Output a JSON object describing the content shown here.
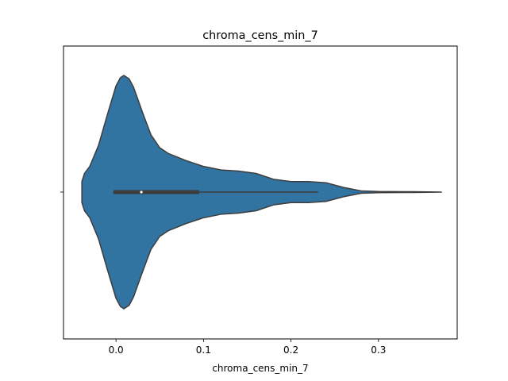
{
  "chart_data": {
    "type": "violin",
    "title": "chroma_cens_min_7",
    "xlabel": "chroma_cens_min_7",
    "ylabel": "",
    "xlim": [
      -0.06,
      0.39
    ],
    "x_ticks": [
      {
        "value": 0.0,
        "label": "0.0"
      },
      {
        "value": 0.1,
        "label": "0.1"
      },
      {
        "value": 0.2,
        "label": "0.2"
      },
      {
        "value": 0.3,
        "label": "0.3"
      }
    ],
    "grid": false,
    "orientation": "horizontal",
    "color": "#3274a1",
    "edge_color": "#3d3d3d",
    "density_profile": [
      {
        "x": -0.039,
        "d": 0.09
      },
      {
        "x": -0.036,
        "d": 0.16
      },
      {
        "x": -0.03,
        "d": 0.22
      },
      {
        "x": -0.02,
        "d": 0.4
      },
      {
        "x": -0.01,
        "d": 0.66
      },
      {
        "x": 0.0,
        "d": 0.91
      },
      {
        "x": 0.005,
        "d": 0.98
      },
      {
        "x": 0.009,
        "d": 1.0
      },
      {
        "x": 0.015,
        "d": 0.97
      },
      {
        "x": 0.02,
        "d": 0.9
      },
      {
        "x": 0.03,
        "d": 0.69
      },
      {
        "x": 0.04,
        "d": 0.49
      },
      {
        "x": 0.05,
        "d": 0.38
      },
      {
        "x": 0.06,
        "d": 0.33
      },
      {
        "x": 0.08,
        "d": 0.27
      },
      {
        "x": 0.1,
        "d": 0.22
      },
      {
        "x": 0.12,
        "d": 0.19
      },
      {
        "x": 0.14,
        "d": 0.18
      },
      {
        "x": 0.16,
        "d": 0.16
      },
      {
        "x": 0.18,
        "d": 0.11
      },
      {
        "x": 0.2,
        "d": 0.09
      },
      {
        "x": 0.22,
        "d": 0.09
      },
      {
        "x": 0.24,
        "d": 0.08
      },
      {
        "x": 0.26,
        "d": 0.04
      },
      {
        "x": 0.28,
        "d": 0.01
      },
      {
        "x": 0.3,
        "d": 0.005
      },
      {
        "x": 0.34,
        "d": 0.003
      },
      {
        "x": 0.372,
        "d": 0.0
      }
    ],
    "box": {
      "whisker_low": -0.003,
      "q1": -0.003,
      "median": 0.029,
      "q3": 0.095,
      "whisker_high": 0.231
    }
  }
}
